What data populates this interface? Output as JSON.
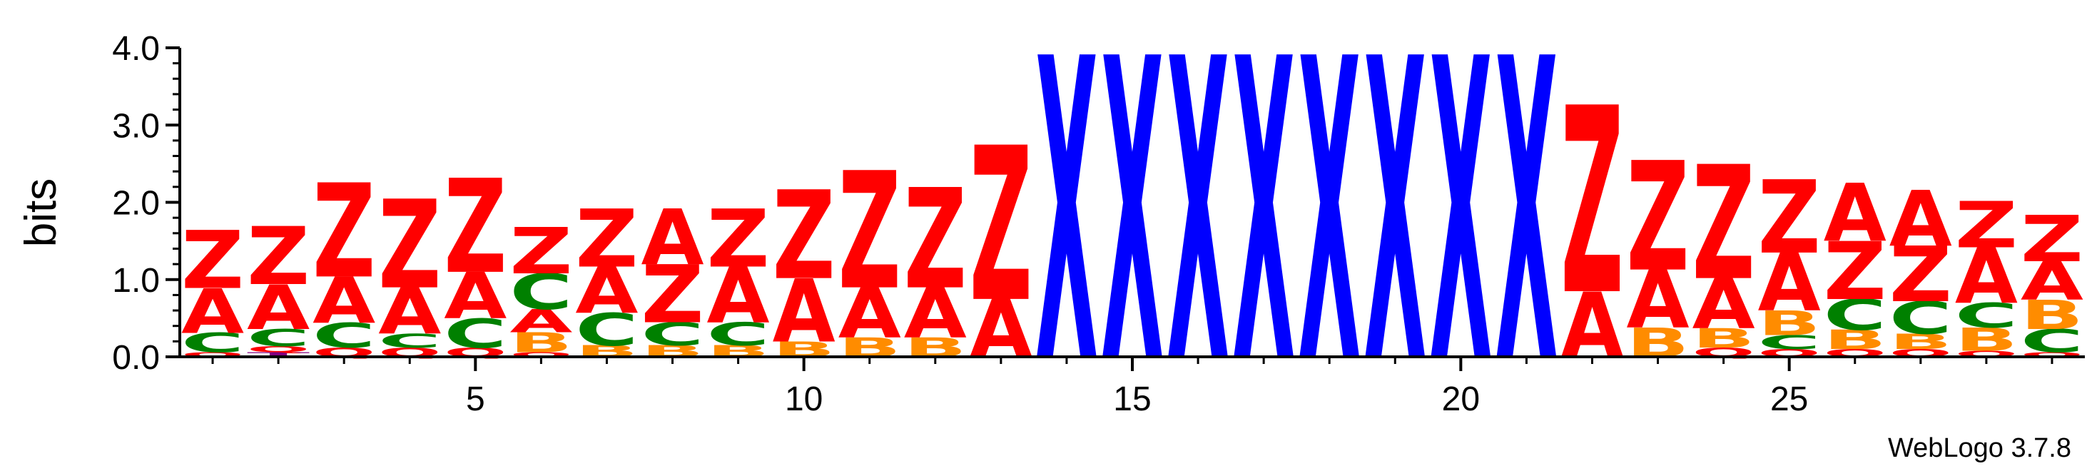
{
  "chart_data": {
    "type": "sequence-logo",
    "ylabel": "bits",
    "ylim": [
      0,
      4.0
    ],
    "yticks": [
      "0.0",
      "1.0",
      "2.0",
      "3.0",
      "4.0"
    ],
    "xticks": [
      5,
      10,
      15,
      20,
      25
    ],
    "positions": 29,
    "credit": "WebLogo 3.7.8",
    "colors": {
      "Z": "#ff0000",
      "A": "#ff0000",
      "X": "#0000ff",
      "C": "#008000",
      "B": "#ff8c00",
      "Q": "#ff0000",
      "T": "#800080"
    },
    "columns": [
      {
        "pos": 1,
        "stack": [
          [
            "Q",
            0.06
          ],
          [
            "C",
            0.25
          ],
          [
            "A",
            0.58
          ],
          [
            "Z",
            0.75
          ]
        ]
      },
      {
        "pos": 2,
        "stack": [
          [
            "T",
            0.06
          ],
          [
            "Q",
            0.08
          ],
          [
            "C",
            0.22
          ],
          [
            "A",
            0.58
          ],
          [
            "Z",
            0.75
          ]
        ]
      },
      {
        "pos": 3,
        "stack": [
          [
            "Q",
            0.12
          ],
          [
            "C",
            0.32
          ],
          [
            "A",
            0.6
          ],
          [
            "Z",
            1.22
          ]
        ]
      },
      {
        "pos": 4,
        "stack": [
          [
            "Q",
            0.12
          ],
          [
            "C",
            0.18
          ],
          [
            "A",
            0.6
          ],
          [
            "Z",
            1.15
          ]
        ]
      },
      {
        "pos": 5,
        "stack": [
          [
            "Q",
            0.12
          ],
          [
            "C",
            0.38
          ],
          [
            "A",
            0.6
          ],
          [
            "Z",
            1.22
          ]
        ]
      },
      {
        "pos": 6,
        "stack": [
          [
            "Q",
            0.06
          ],
          [
            "B",
            0.26
          ],
          [
            "A",
            0.3
          ],
          [
            "C",
            0.46
          ],
          [
            "Z",
            0.6
          ]
        ]
      },
      {
        "pos": 7,
        "stack": [
          [
            "B",
            0.15
          ],
          [
            "C",
            0.42
          ],
          [
            "A",
            0.6
          ],
          [
            "Z",
            0.75
          ]
        ]
      },
      {
        "pos": 8,
        "stack": [
          [
            "B",
            0.15
          ],
          [
            "C",
            0.3
          ],
          [
            "Z",
            0.75
          ],
          [
            "A",
            0.72
          ]
        ]
      },
      {
        "pos": 9,
        "stack": [
          [
            "B",
            0.15
          ],
          [
            "C",
            0.3
          ],
          [
            "A",
            0.72
          ],
          [
            "Z",
            0.75
          ]
        ]
      },
      {
        "pos": 10,
        "stack": [
          [
            "B",
            0.2
          ],
          [
            "A",
            0.82
          ],
          [
            "Z",
            1.15
          ]
        ]
      },
      {
        "pos": 11,
        "stack": [
          [
            "B",
            0.25
          ],
          [
            "A",
            0.65
          ],
          [
            "Z",
            1.52
          ]
        ]
      },
      {
        "pos": 12,
        "stack": [
          [
            "B",
            0.25
          ],
          [
            "A",
            0.65
          ],
          [
            "Z",
            1.3
          ]
        ]
      },
      {
        "pos": 13,
        "stack": [
          [
            "A",
            0.75
          ],
          [
            "Z",
            2.0
          ]
        ]
      },
      {
        "pos": 14,
        "stack": [
          [
            "X",
            3.92
          ]
        ]
      },
      {
        "pos": 15,
        "stack": [
          [
            "X",
            3.92
          ]
        ]
      },
      {
        "pos": 16,
        "stack": [
          [
            "X",
            3.92
          ]
        ]
      },
      {
        "pos": 17,
        "stack": [
          [
            "X",
            3.92
          ]
        ]
      },
      {
        "pos": 18,
        "stack": [
          [
            "X",
            3.92
          ]
        ]
      },
      {
        "pos": 19,
        "stack": [
          [
            "X",
            3.92
          ]
        ]
      },
      {
        "pos": 20,
        "stack": [
          [
            "X",
            3.92
          ]
        ]
      },
      {
        "pos": 21,
        "stack": [
          [
            "X",
            3.92
          ]
        ]
      },
      {
        "pos": 22,
        "stack": [
          [
            "A",
            0.85
          ],
          [
            "Z",
            2.42
          ]
        ]
      },
      {
        "pos": 23,
        "stack": [
          [
            "B",
            0.38
          ],
          [
            "A",
            0.75
          ],
          [
            "Z",
            1.42
          ]
        ]
      },
      {
        "pos": 24,
        "stack": [
          [
            "Q",
            0.12
          ],
          [
            "B",
            0.25
          ],
          [
            "A",
            0.65
          ],
          [
            "Z",
            1.48
          ]
        ]
      },
      {
        "pos": 25,
        "stack": [
          [
            "Q",
            0.1
          ],
          [
            "C",
            0.18
          ],
          [
            "B",
            0.32
          ],
          [
            "A",
            0.75
          ],
          [
            "Z",
            0.95
          ]
        ]
      },
      {
        "pos": 26,
        "stack": [
          [
            "Q",
            0.1
          ],
          [
            "B",
            0.25
          ],
          [
            "C",
            0.4
          ],
          [
            "Z",
            0.75
          ],
          [
            "A",
            0.75
          ]
        ]
      },
      {
        "pos": 27,
        "stack": [
          [
            "Q",
            0.1
          ],
          [
            "B",
            0.2
          ],
          [
            "C",
            0.42
          ],
          [
            "Z",
            0.72
          ],
          [
            "A",
            0.72
          ]
        ]
      },
      {
        "pos": 28,
        "stack": [
          [
            "Q",
            0.08
          ],
          [
            "B",
            0.3
          ],
          [
            "C",
            0.32
          ],
          [
            "A",
            0.72
          ],
          [
            "Z",
            0.6
          ]
        ]
      },
      {
        "pos": 29,
        "stack": [
          [
            "Q",
            0.06
          ],
          [
            "C",
            0.3
          ],
          [
            "B",
            0.38
          ],
          [
            "A",
            0.5
          ],
          [
            "Z",
            0.6
          ]
        ]
      }
    ]
  }
}
